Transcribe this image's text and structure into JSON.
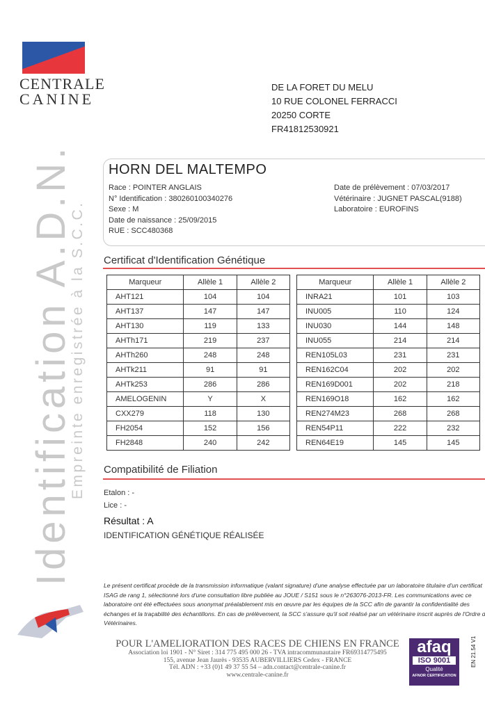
{
  "logo": {
    "line1": "CENTRALE",
    "line2": "CANINE"
  },
  "side": {
    "title": "Identification A.D.N.",
    "subtitle": "Empreinte enregistrée à la S.C.C."
  },
  "address": [
    "DE LA FORET DU MELU",
    "10 RUE COLONEL FERRACCI",
    "20250 CORTE",
    "FR41812530921"
  ],
  "dog": {
    "name": "HORN DEL MALTEMPO",
    "left": [
      "Race : POINTER ANGLAIS",
      "N° Identification : 380260100340276",
      "Sexe : M",
      "Date de naissance : 25/09/2015",
      "RUE : SCC480368"
    ],
    "right": [
      "Date de prélèvement : 07/03/2017",
      "Vétérinaire : JUGNET PASCAL(9188)",
      "Laboratoire : EUROFINS"
    ]
  },
  "certificate": {
    "heading": "Certificat d'Identification Génétique",
    "columns": [
      "Marqueur",
      "Allèle 1",
      "Allèle 2"
    ],
    "left_rows": [
      [
        "AHT121",
        "104",
        "104"
      ],
      [
        "AHT137",
        "147",
        "147"
      ],
      [
        "AHT130",
        "119",
        "133"
      ],
      [
        "AHTh171",
        "219",
        "237"
      ],
      [
        "AHTh260",
        "248",
        "248"
      ],
      [
        "AHTk211",
        "91",
        "91"
      ],
      [
        "AHTk253",
        "286",
        "286"
      ],
      [
        "AMELOGENIN",
        "Y",
        "X"
      ],
      [
        "CXX279",
        "118",
        "130"
      ],
      [
        "FH2054",
        "152",
        "156"
      ],
      [
        "FH2848",
        "240",
        "242"
      ]
    ],
    "right_rows": [
      [
        "INRA21",
        "101",
        "103"
      ],
      [
        "INU005",
        "110",
        "124"
      ],
      [
        "INU030",
        "144",
        "148"
      ],
      [
        "INU055",
        "214",
        "214"
      ],
      [
        "REN105L03",
        "231",
        "231"
      ],
      [
        "REN162C04",
        "202",
        "202"
      ],
      [
        "REN169D001",
        "202",
        "218"
      ],
      [
        "REN169O18",
        "162",
        "162"
      ],
      [
        "REN274M23",
        "268",
        "268"
      ],
      [
        "REN54P11",
        "222",
        "232"
      ],
      [
        "REN64E19",
        "145",
        "145"
      ]
    ]
  },
  "filiation": {
    "heading": "Compatibilité de Filiation",
    "etalon": "Etalon : -",
    "lice": "Lice : -",
    "result": "Résultat : A",
    "result_text": "IDENTIFICATION GÉNÉTIQUE RÉALISÉE"
  },
  "disclaimer": "Le présent certificat procède de la transmission informatique (valant signature) d'une analyse effectuée par un laboratoire titulaire d'un certificat ISAG de rang 1, sélectionné lors d'une consultation libre publiée au JOUE / S151 sous le n°263076-2013-FR. Les communications avec ce laboratoire ont été effectuées sous anonymat préalablement mis en œuvre par les équipes de la SCC afin de garantir la confidentialité des échanges et la traçabilité des échantillons. En cas de prélèvement, la SCC s'assure qu'il soit réalisé par un vétérinaire inscrit auprès de l'Ordre des Vétérinaires.",
  "footer": {
    "title": "POUR L'AMELIORATION DES RACES DE CHIENS EN FRANCE",
    "lines": [
      "Association loi 1901 - N° Siret : 314 775 495 000 26 - TVA intracommunautaire FR69314775495",
      "155, avenue Jean Jaurès - 93535 AUBERVILLIERS Cedex - FRANCE",
      "Tél. ADN : +33 (0)1 49 37 55 54 – adn.contact@centrale-canine.fr",
      "www.centrale-canine.fr"
    ]
  },
  "afaq": {
    "brand": "afaq",
    "iso": "ISO 9001",
    "quality": "Qualité",
    "cert": "AFNOR CERTIFICATION"
  },
  "doc_code": "EN 21.54 V1"
}
